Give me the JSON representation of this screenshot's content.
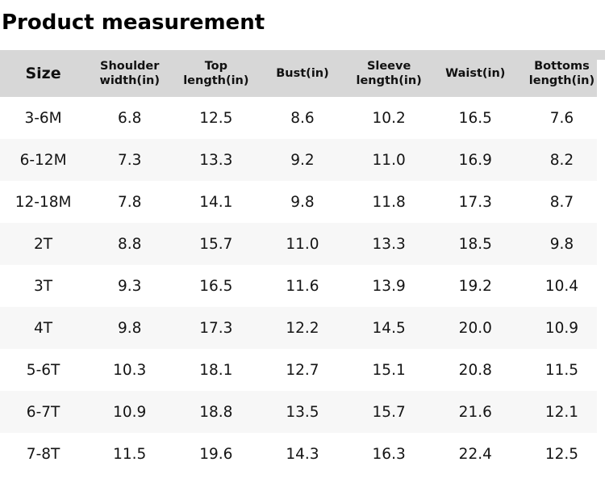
{
  "page": {
    "title": "Product measurement"
  },
  "colors": {
    "header_bg": "#d7d7d7",
    "row_alt_bg": "#f7f7f7",
    "row_bg": "#ffffff",
    "text": "#141414"
  },
  "table": {
    "columns": [
      "Size",
      "Shoulder width(in)",
      "Top length(in)",
      "Bust(in)",
      "Sleeve length(in)",
      "Waist(in)",
      "Bottoms length(in)"
    ],
    "rows": [
      {
        "cells": [
          "3-6M",
          "6.8",
          "12.5",
          "8.6",
          "10.2",
          "16.5",
          "7.6"
        ]
      },
      {
        "cells": [
          "6-12M",
          "7.3",
          "13.3",
          "9.2",
          "11.0",
          "16.9",
          "8.2"
        ]
      },
      {
        "cells": [
          "12-18M",
          "7.8",
          "14.1",
          "9.8",
          "11.8",
          "17.3",
          "8.7"
        ]
      },
      {
        "cells": [
          "2T",
          "8.8",
          "15.7",
          "11.0",
          "13.3",
          "18.5",
          "9.8"
        ]
      },
      {
        "cells": [
          "3T",
          "9.3",
          "16.5",
          "11.6",
          "13.9",
          "19.2",
          "10.4"
        ]
      },
      {
        "cells": [
          "4T",
          "9.8",
          "17.3",
          "12.2",
          "14.5",
          "20.0",
          "10.9"
        ]
      },
      {
        "cells": [
          "5-6T",
          "10.3",
          "18.1",
          "12.7",
          "15.1",
          "20.8",
          "11.5"
        ]
      },
      {
        "cells": [
          "6-7T",
          "10.9",
          "18.8",
          "13.5",
          "15.7",
          "21.6",
          "12.1"
        ]
      },
      {
        "cells": [
          "7-8T",
          "11.5",
          "19.6",
          "14.3",
          "16.3",
          "22.4",
          "12.5"
        ]
      }
    ]
  }
}
